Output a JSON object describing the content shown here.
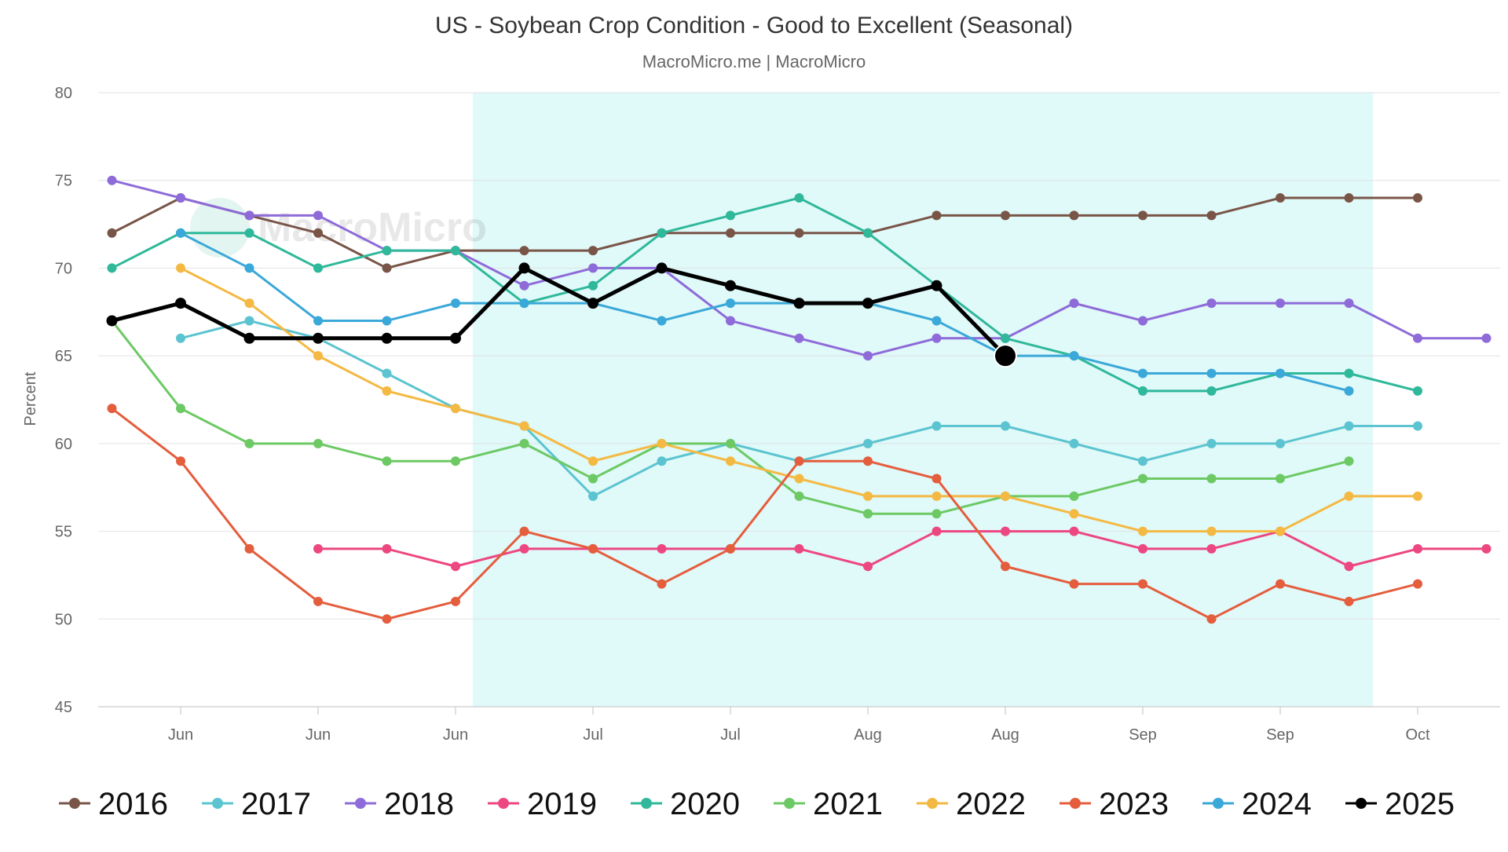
{
  "chart_data": {
    "type": "line",
    "title": "US - Soybean Crop Condition - Good to Excellent (Seasonal)",
    "subtitle": "MacroMicro.me | MacroMicro",
    "watermark": "MacroMicro",
    "xlabel": "",
    "ylabel": "Percent",
    "ylim": [
      45,
      80
    ],
    "yticks": [
      45,
      50,
      55,
      60,
      65,
      70,
      75,
      80
    ],
    "grid": true,
    "legend_position": "bottom",
    "x": [
      0,
      1,
      2,
      3,
      4,
      5,
      6,
      7,
      8,
      9,
      10,
      11,
      12,
      13,
      14,
      15,
      16,
      17,
      18,
      19,
      20
    ],
    "xlim": [
      -0.2,
      20.2
    ],
    "x_tick_positions": [
      1,
      3,
      5,
      7,
      9,
      11,
      13,
      15,
      17,
      19
    ],
    "x_tick_labels": [
      "Jun",
      "Jun",
      "Jun",
      "Jul",
      "Jul",
      "Aug",
      "Aug",
      "Sep",
      "Sep",
      "Oct"
    ],
    "highlight_band": [
      5.25,
      18.35
    ],
    "highlight_color": "#e0f9f9",
    "series": [
      {
        "name": "2016",
        "color": "#795548",
        "values": [
          72,
          74,
          73,
          72,
          70,
          71,
          71,
          71,
          72,
          72,
          72,
          72,
          73,
          73,
          73,
          73,
          73,
          74,
          74,
          74,
          null
        ]
      },
      {
        "name": "2017",
        "color": "#5bc4d0",
        "values": [
          null,
          66,
          67,
          66,
          64,
          62,
          61,
          57,
          59,
          60,
          59,
          60,
          61,
          61,
          60,
          59,
          60,
          60,
          61,
          61,
          null
        ]
      },
      {
        "name": "2018",
        "color": "#8e6bd9",
        "values": [
          75,
          74,
          73,
          73,
          71,
          71,
          69,
          70,
          70,
          67,
          66,
          65,
          66,
          66,
          68,
          67,
          68,
          68,
          68,
          66,
          66
        ]
      },
      {
        "name": "2019",
        "color": "#ec4780",
        "values": [
          null,
          null,
          null,
          54,
          54,
          53,
          54,
          54,
          54,
          54,
          54,
          53,
          55,
          55,
          55,
          54,
          54,
          55,
          53,
          54,
          54
        ]
      },
      {
        "name": "2020",
        "color": "#2fb89a",
        "values": [
          70,
          72,
          72,
          70,
          71,
          71,
          68,
          69,
          72,
          73,
          74,
          72,
          69,
          66,
          65,
          63,
          63,
          64,
          64,
          63,
          null
        ]
      },
      {
        "name": "2021",
        "color": "#6cc964",
        "values": [
          67,
          62,
          60,
          60,
          59,
          59,
          60,
          58,
          60,
          60,
          57,
          56,
          56,
          57,
          57,
          58,
          58,
          58,
          59,
          null,
          null
        ]
      },
      {
        "name": "2022",
        "color": "#f4b942",
        "values": [
          null,
          70,
          68,
          65,
          63,
          62,
          61,
          59,
          60,
          59,
          58,
          57,
          57,
          57,
          56,
          55,
          55,
          55,
          57,
          57,
          null
        ]
      },
      {
        "name": "2023",
        "color": "#e45d3d",
        "values": [
          62,
          59,
          54,
          51,
          50,
          51,
          55,
          54,
          52,
          54,
          59,
          59,
          58,
          53,
          52,
          52,
          50,
          52,
          51,
          52,
          null
        ]
      },
      {
        "name": "2024",
        "color": "#3aa8d8",
        "values": [
          null,
          72,
          70,
          67,
          67,
          68,
          68,
          68,
          67,
          68,
          68,
          68,
          67,
          65,
          65,
          64,
          64,
          64,
          63,
          null,
          null
        ]
      },
      {
        "name": "2025",
        "color": "#000000",
        "values": [
          67,
          68,
          66,
          66,
          66,
          66,
          70,
          68,
          70,
          69,
          68,
          68,
          69,
          65,
          null,
          null,
          null,
          null,
          null,
          null,
          null
        ]
      }
    ]
  }
}
